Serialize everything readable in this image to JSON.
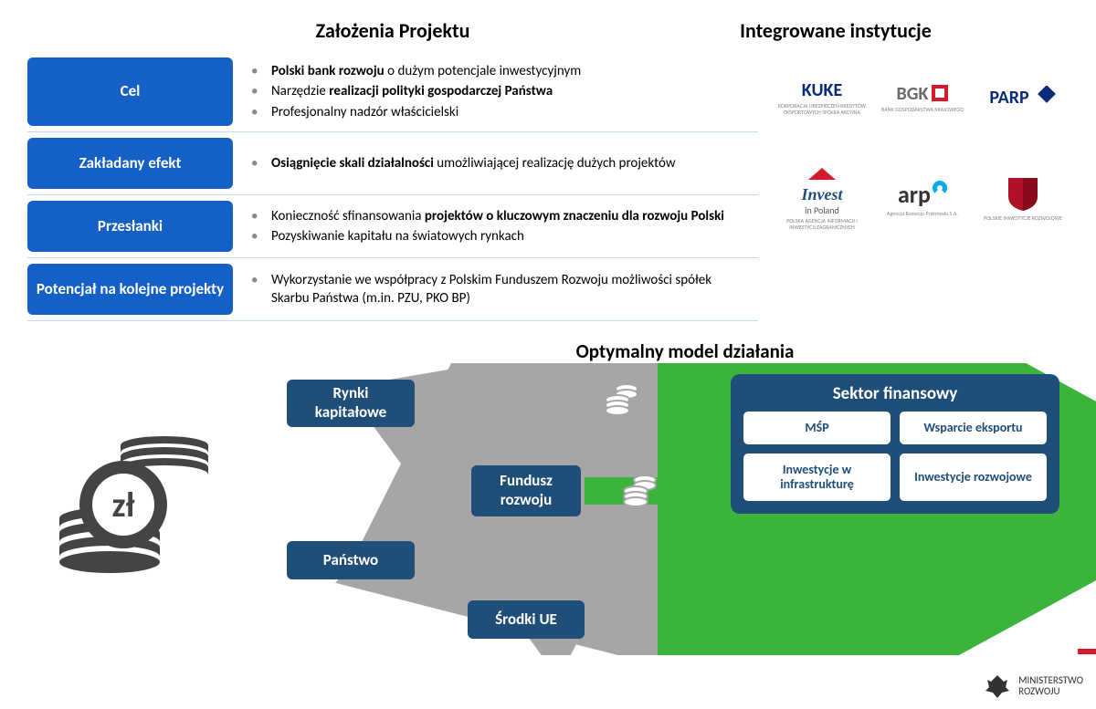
{
  "titles": {
    "left": "Założenia Projektu",
    "right": "Integrowane instytucje"
  },
  "rows": [
    {
      "label": "Cel",
      "bullets": [
        "<b>Polski bank rozwoju</b> o dużym potencjale inwestycyjnym",
        "Narzędzie <b>realizacji polityki gospodarczej Państwa</b>",
        "Profesjonalny nadzór właścicielski"
      ]
    },
    {
      "label": "Zakładany efekt",
      "bullets": [
        "<b>Osiągnięcie skali działalności</b> umożliwiającej realizację dużych projektów"
      ]
    },
    {
      "label": "Przesłanki",
      "bullets": [
        "Konieczność sfinansowania <b>projektów o kluczowym znaczeniu dla rozwoju Polski</b>",
        "Pozyskiwanie kapitału na światowych rynkach"
      ]
    },
    {
      "label": "Potencjał na kolejne projekty",
      "bullets": [
        "Wykorzystanie we współpracy z Polskim Funduszem Rozwoju możliwości spółek Skarbu Państwa (m.in. PZU, PKO BP)"
      ]
    }
  ],
  "logos": [
    {
      "main": "KUKE",
      "main_color": "#0a2a7a",
      "sub": "KORPORACJA UBEZPIECZEŃ KREDYTÓW EKSPORTOWYCH SPÓŁKA AKCYJNA"
    },
    {
      "main": "BGK",
      "main_color": "#6a6a6a",
      "accent": "#d7192d",
      "sub": "BANK GOSPODARSTWA KRAJOWEGO"
    },
    {
      "main": "PARP",
      "main_color": "#0a2a7a",
      "accent": "#0a2a7a",
      "sub": ""
    },
    {
      "main": "Invest",
      "main_color": "#1f4e78",
      "sub2": "in Poland",
      "sub": "POLSKA AGENCJA INFORMACJI I INWESTYCJI ZAGRANICZNYCH"
    },
    {
      "main": "arp",
      "main_color": "#333333",
      "accent": "#00aee6",
      "sub": "Agencja Rozwoju Przemysłu S.A."
    },
    {
      "main": "",
      "shield": true,
      "sub": "POLSKIE INWESTYCJE ROZWOJOWE"
    }
  ],
  "model_title": "Optymalny model działania",
  "diagram": {
    "boxes": {
      "rynki": "Rynki kapitałowe",
      "panstwo": "Państwo",
      "fundusz": "Fundusz rozwoju",
      "srodki": "Środki UE"
    },
    "sector": {
      "title": "Sektor finansowy",
      "cells": [
        "MŚP",
        "Wsparcie eksportu",
        "Inwestycje w infrastrukturę",
        "Inwestycje rozwojowe"
      ]
    },
    "zl": "zł"
  },
  "footer": {
    "ministry1": "MINISTERSTWO",
    "ministry2": "ROZWOJU"
  },
  "colors": {
    "label_blue": "#1460c6",
    "box_blue": "#1f4e78",
    "arrow_gray": "#a6a6a6",
    "arrow_green": "#3cb43c",
    "divider": "#c4dbe6",
    "coin_gray": "#444444"
  }
}
